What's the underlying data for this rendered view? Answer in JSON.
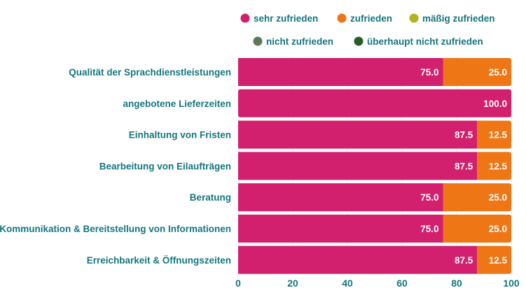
{
  "chart_data": {
    "type": "bar",
    "orientation": "horizontal",
    "stacked": true,
    "title": "",
    "xlabel": "",
    "ylabel": "",
    "xlim": [
      0,
      100
    ],
    "x_ticks": [
      0,
      20,
      40,
      60,
      80,
      100
    ],
    "grid": true,
    "legend_position": "top-right",
    "categories": [
      "Qualität der Sprachdienstleistungen",
      "angebotene Lieferzeiten",
      "Einhaltung von Fristen",
      "Bearbeitung von Eilaufträgen",
      "Beratung",
      "Kommunikation & Bereitstellung von Informationen",
      "Erreichbarkeit & Öffnungszeiten"
    ],
    "series": [
      {
        "name": "sehr zufrieden",
        "color": "#d21f6e",
        "values": [
          75.0,
          100.0,
          87.5,
          87.5,
          75.0,
          75.0,
          87.5
        ]
      },
      {
        "name": "zufrieden",
        "color": "#ef7615",
        "values": [
          25.0,
          0,
          12.5,
          12.5,
          25.0,
          25.0,
          12.5
        ]
      },
      {
        "name": "mäßig zufrieden",
        "color": "#b5b21e",
        "values": [
          0,
          0,
          0,
          0,
          0,
          0,
          0
        ]
      },
      {
        "name": "nicht zufrieden",
        "color": "#5c7a5a",
        "values": [
          0,
          0,
          0,
          0,
          0,
          0,
          0
        ]
      },
      {
        "name": "überhaupt nicht zufrieden",
        "color": "#275e28",
        "values": [
          0,
          0,
          0,
          0,
          0,
          0,
          0
        ]
      }
    ],
    "value_label_format": "0.0"
  },
  "colors": {
    "text": "#15767f",
    "grid": "#ececec",
    "value_label": "#ffffff"
  }
}
